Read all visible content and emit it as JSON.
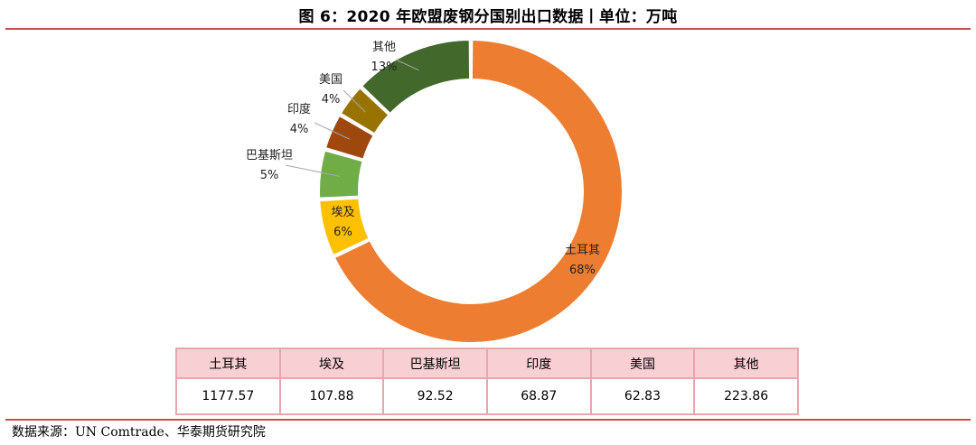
{
  "title": "图 6：2020 年欧盟废钢分国别出口数据丨单位：万吨",
  "source": "数据来源：UN Comtrade、华泰期货研究院",
  "chart_data": {
    "type": "pie",
    "donut": true,
    "title": "图 6：2020 年欧盟废钢分国别出口数据丨单位：万吨",
    "slices": [
      {
        "name": "土耳其",
        "percent_label": "68%",
        "value": 1177.57,
        "color": "#ed7d31"
      },
      {
        "name": "埃及",
        "percent_label": "6%",
        "value": 107.88,
        "color": "#ffc000"
      },
      {
        "name": "巴基斯坦",
        "percent_label": "5%",
        "value": 92.52,
        "color": "#70ad47"
      },
      {
        "name": "印度",
        "percent_label": "4%",
        "value": 68.87,
        "color": "#9e480e"
      },
      {
        "name": "美国",
        "percent_label": "4%",
        "value": 62.83,
        "color": "#997300"
      },
      {
        "name": "其他",
        "percent_label": "13%",
        "value": 223.86,
        "color": "#43682b"
      }
    ]
  },
  "table": {
    "headers": [
      "土耳其",
      "埃及",
      "巴基斯坦",
      "印度",
      "美国",
      "其他"
    ],
    "values": [
      "1177.57",
      "107.88",
      "92.52",
      "68.87",
      "62.83",
      "223.86"
    ]
  }
}
